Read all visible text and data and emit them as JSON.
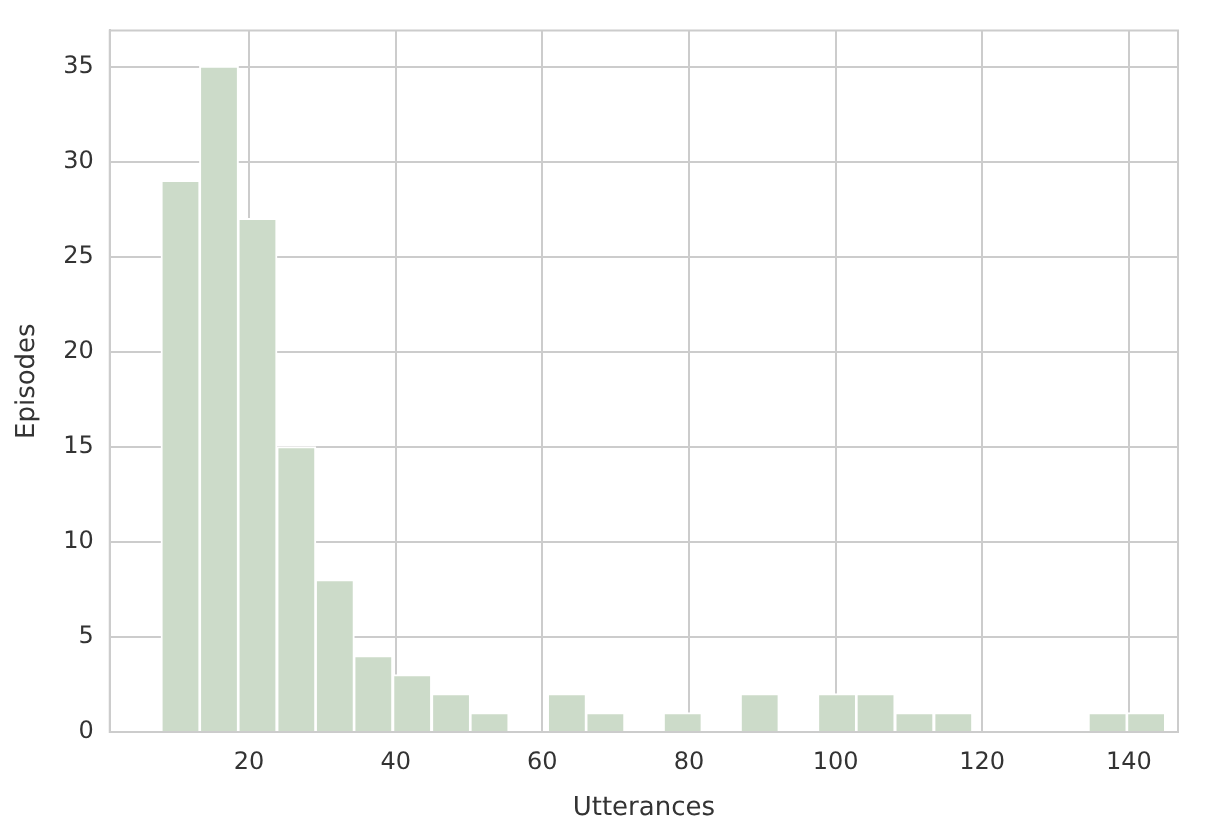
{
  "chart_data": {
    "type": "histogram",
    "xlabel": "Utterances",
    "ylabel": "Episodes",
    "bins": [
      8,
      13.3,
      18.5,
      23.8,
      29.1,
      34.3,
      39.6,
      44.9,
      50.2,
      55.4,
      60.7,
      66,
      71.2,
      76.5,
      81.8,
      87,
      92.3,
      97.6,
      102.8,
      108.1,
      113.4,
      118.7,
      123.9,
      129.2,
      134.5,
      139.7,
      145
    ],
    "values": [
      29,
      35,
      27,
      15,
      8,
      4,
      3,
      2,
      1,
      0,
      2,
      1,
      0,
      1,
      0,
      2,
      0,
      2,
      2,
      1,
      1,
      0,
      0,
      0,
      1,
      1
    ],
    "color": "#ccdbc9",
    "xlim": [
      1,
      146.7
    ],
    "xticks": [
      20,
      40,
      60,
      80,
      100,
      120,
      140
    ],
    "ylim": [
      0,
      36.9
    ],
    "yticks": [
      0,
      5,
      10,
      15,
      20,
      25,
      30,
      35
    ],
    "grid": true
  }
}
